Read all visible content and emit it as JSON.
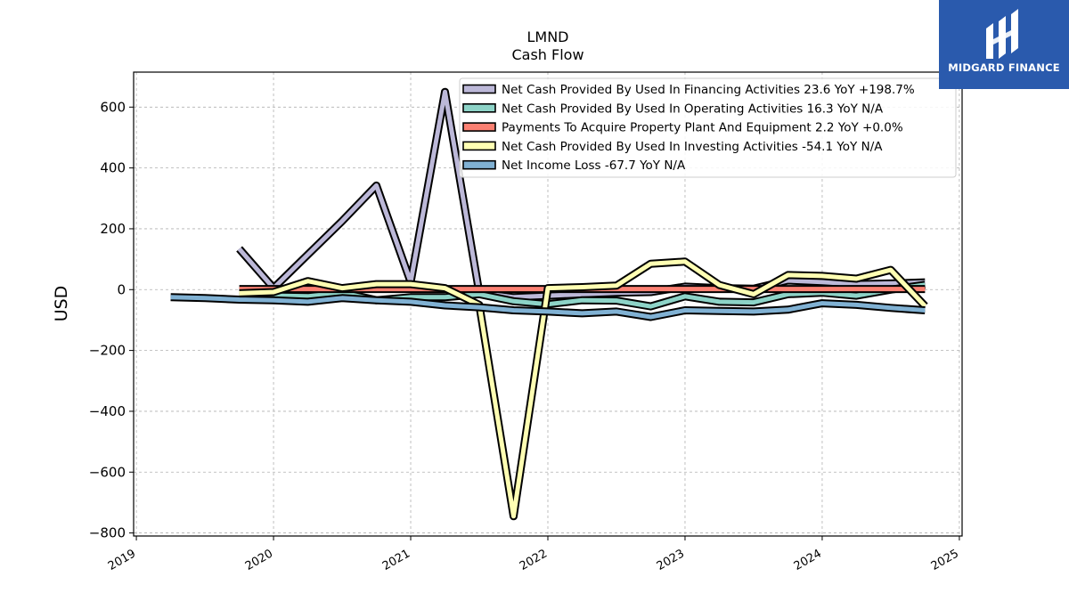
{
  "chart_data": {
    "type": "line",
    "title": "LMND",
    "subtitle": "Cash Flow",
    "ylabel": "USD",
    "xlabel": "",
    "xlim": [
      2018.98,
      2025.02
    ],
    "ylim": [
      -810,
      715
    ],
    "x_ticks": [
      2019,
      2020,
      2021,
      2022,
      2023,
      2024,
      2025
    ],
    "y_ticks": [
      600,
      400,
      200,
      0,
      -200,
      -400,
      -600,
      -800
    ],
    "y_tick_labels": [
      "600",
      "400",
      "200",
      "0",
      "−200",
      "−400",
      "−600",
      "−800"
    ],
    "grid": true,
    "legend_position": "top-right",
    "series": [
      {
        "name": "Net Cash Provided By Used In Financing Activities  23.6 YoY +198.7%",
        "color": "#bcb8d8",
        "x": [
          2019.75,
          2020.0,
          2020.25,
          2020.5,
          2020.75,
          2021.0,
          2021.25,
          2021.5,
          2021.75,
          2022.0,
          2022.25,
          2022.5,
          2022.75,
          2023.0,
          2023.25,
          2023.5,
          2023.75,
          2024.0,
          2024.25,
          2024.5,
          2024.75
        ],
        "y": [
          134,
          5,
          115,
          225,
          342,
          25,
          650,
          -10,
          -25,
          -20,
          -15,
          -10,
          -8,
          10,
          5,
          3,
          30,
          25,
          18,
          20,
          24
        ]
      },
      {
        "name": "Net Cash Provided By Used In Operating Activities  16.3 YoY N/A",
        "color": "#8dd3c7",
        "x": [
          2019.75,
          2020.0,
          2020.25,
          2020.5,
          2020.75,
          2021.0,
          2021.25,
          2021.5,
          2021.75,
          2022.0,
          2022.25,
          2022.5,
          2022.75,
          2023.0,
          2023.25,
          2023.5,
          2023.75,
          2024.0,
          2024.25,
          2024.5,
          2024.75
        ],
        "y": [
          -15,
          -20,
          -22,
          -10,
          -35,
          -25,
          -25,
          -15,
          -38,
          -48,
          -35,
          -36,
          -55,
          -22,
          -40,
          -42,
          -15,
          -10,
          -20,
          0,
          16
        ]
      },
      {
        "name": "Payments To Acquire Property Plant And Equipment  2.2 YoY +0.0%",
        "color": "#fb8072",
        "x": [
          2019.75,
          2020.0,
          2020.25,
          2020.5,
          2020.75,
          2021.0,
          2021.25,
          2021.5,
          2021.75,
          2022.0,
          2022.25,
          2022.5,
          2022.75,
          2023.0,
          2023.25,
          2023.5,
          2023.75,
          2024.0,
          2024.25,
          2024.5,
          2024.75
        ],
        "y": [
          2,
          2,
          2,
          2,
          2,
          2,
          2,
          2,
          2,
          2,
          2,
          2,
          2,
          2,
          2,
          2,
          2,
          2,
          2,
          2,
          2
        ]
      },
      {
        "name": "Net Cash Provided By Used In Investing Activities  -54.1 YoY N/A",
        "color": "#ffffb3",
        "x": [
          2019.75,
          2020.0,
          2020.25,
          2020.5,
          2020.75,
          2021.0,
          2021.25,
          2021.5,
          2021.75,
          2022.0,
          2022.25,
          2022.5,
          2022.75,
          2023.0,
          2023.25,
          2023.5,
          2023.75,
          2024.0,
          2024.25,
          2024.5,
          2024.75
        ],
        "y": [
          -12,
          -8,
          28,
          5,
          18,
          18,
          5,
          -50,
          -745,
          5,
          8,
          13,
          85,
          92,
          15,
          -15,
          48,
          45,
          36,
          65,
          -54
        ]
      },
      {
        "name": "Net Income Loss  -67.7 YoY N/A",
        "color": "#80b1d3",
        "x": [
          2019.25,
          2019.5,
          2019.75,
          2020.0,
          2020.25,
          2020.5,
          2020.75,
          2021.0,
          2021.25,
          2021.5,
          2021.75,
          2022.0,
          2022.25,
          2022.5,
          2022.75,
          2023.0,
          2023.25,
          2023.5,
          2023.75,
          2024.0,
          2024.25,
          2024.5,
          2024.75
        ],
        "y": [
          -25,
          -28,
          -33,
          -35,
          -40,
          -28,
          -35,
          -40,
          -52,
          -58,
          -68,
          -72,
          -78,
          -72,
          -90,
          -68,
          -70,
          -72,
          -66,
          -45,
          -50,
          -60,
          -68
        ]
      }
    ]
  },
  "branding": {
    "logo_text": "MIDGARD FINANCE",
    "bg_color": "#2a5aad"
  }
}
